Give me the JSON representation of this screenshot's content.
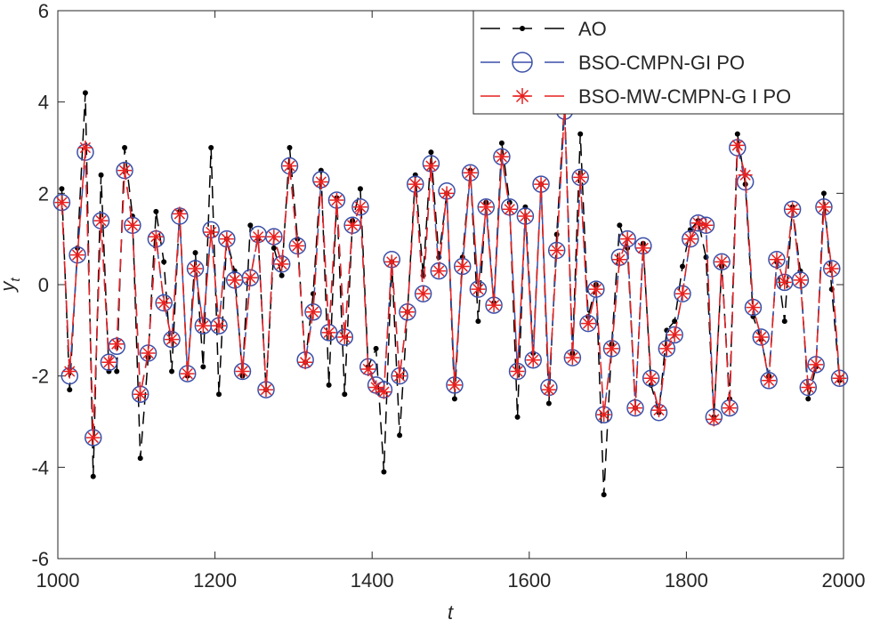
{
  "chart_data": {
    "type": "line",
    "x_label": "t",
    "y_label": "y",
    "y_label_sub": "t",
    "xlim": [
      1000,
      2000
    ],
    "xticks": [
      1000,
      1200,
      1400,
      1600,
      1800,
      2000
    ],
    "ylim": [
      -6,
      6
    ],
    "yticks": [
      -6,
      -4,
      -2,
      0,
      2,
      4,
      6
    ],
    "legend": "upper right",
    "x": [
      1005,
      1015,
      1025,
      1035,
      1045,
      1055,
      1065,
      1075,
      1085,
      1095,
      1105,
      1115,
      1125,
      1135,
      1145,
      1155,
      1165,
      1175,
      1185,
      1195,
      1205,
      1215,
      1225,
      1235,
      1245,
      1255,
      1265,
      1275,
      1285,
      1295,
      1305,
      1315,
      1325,
      1335,
      1345,
      1355,
      1365,
      1375,
      1385,
      1395,
      1405,
      1415,
      1425,
      1435,
      1445,
      1455,
      1465,
      1475,
      1485,
      1495,
      1505,
      1515,
      1525,
      1535,
      1545,
      1555,
      1565,
      1575,
      1585,
      1595,
      1605,
      1615,
      1625,
      1635,
      1645,
      1655,
      1665,
      1675,
      1685,
      1695,
      1705,
      1715,
      1725,
      1735,
      1745,
      1755,
      1765,
      1775,
      1785,
      1795,
      1805,
      1815,
      1825,
      1835,
      1845,
      1855,
      1865,
      1875,
      1885,
      1895,
      1905,
      1915,
      1925,
      1935,
      1945,
      1955,
      1965,
      1975,
      1985,
      1995
    ],
    "series": [
      {
        "name": "AO",
        "color": "#000000",
        "marker": "dot",
        "values": [
          2.1,
          -2.3,
          0.8,
          4.2,
          -4.2,
          2.4,
          -1.9,
          -1.9,
          3.0,
          1.5,
          -3.8,
          -1.6,
          1.6,
          0.5,
          -1.9,
          1.6,
          -2.0,
          0.7,
          -1.8,
          3.0,
          -2.4,
          1.0,
          0.3,
          -2.0,
          1.3,
          1.0,
          -2.3,
          0.8,
          0.2,
          3.0,
          1.0,
          -1.7,
          -0.2,
          2.5,
          -2.2,
          1.9,
          -2.4,
          1.4,
          2.1,
          -1.8,
          -1.4,
          -4.1,
          0.5,
          -3.3,
          -0.6,
          2.4,
          0.2,
          2.9,
          0.6,
          2.0,
          -2.5,
          0.6,
          2.5,
          -0.8,
          1.8,
          -0.4,
          3.1,
          1.8,
          -2.9,
          1.7,
          -1.5,
          2.2,
          -2.6,
          1.1,
          4.0,
          -1.5,
          3.3,
          -0.7,
          0.0,
          -4.6,
          -1.3,
          1.3,
          0.8,
          -2.7,
          0.9,
          -2.2,
          -2.8,
          -1.0,
          -0.8,
          0.4,
          1.2,
          1.4,
          0.6,
          -2.9,
          0.4,
          -2.5,
          3.3,
          2.2,
          -0.7,
          -1.2,
          -2.0,
          0.5,
          -0.8,
          1.7,
          0.3,
          -2.5,
          -1.8,
          2.0,
          -0.1,
          -2.1
        ]
      },
      {
        "name": "BSO-CMPN-GI PO",
        "color": "#3a4fa8",
        "marker": "circle",
        "values": [
          1.8,
          -2.0,
          0.65,
          2.9,
          -3.35,
          1.4,
          -1.7,
          -1.35,
          2.5,
          1.3,
          -2.4,
          -1.5,
          1.0,
          -0.4,
          -1.2,
          1.5,
          -1.95,
          0.35,
          -0.9,
          1.2,
          -0.9,
          1.0,
          0.1,
          -1.9,
          0.15,
          1.1,
          -2.3,
          1.05,
          0.45,
          2.6,
          0.85,
          -1.65,
          -0.6,
          2.3,
          -1.05,
          1.85,
          -1.15,
          1.3,
          1.7,
          -1.8,
          -2.2,
          -2.3,
          0.55,
          -2.0,
          -0.6,
          2.2,
          -0.2,
          2.65,
          0.3,
          2.05,
          -2.2,
          0.4,
          2.45,
          -0.1,
          1.7,
          -0.45,
          2.8,
          1.7,
          -1.9,
          1.5,
          -1.65,
          2.2,
          -2.25,
          0.75,
          3.8,
          -1.6,
          2.35,
          -0.85,
          -0.1,
          -2.85,
          -1.4,
          0.6,
          1.0,
          -2.7,
          0.85,
          -2.05,
          -2.8,
          -1.4,
          -1.1,
          -0.2,
          1.0,
          1.35,
          1.3,
          -2.9,
          0.5,
          -2.7,
          3.0,
          2.25,
          -0.5,
          -1.15,
          -2.1,
          0.55,
          0.05,
          1.65,
          0.1,
          -2.25,
          -1.75,
          1.7,
          0.35,
          -2.05
        ]
      },
      {
        "name": "BSO-MW-CMPN-G I PO",
        "color": "#e8201e",
        "marker": "asterisk",
        "values": [
          1.8,
          -1.9,
          0.65,
          3.0,
          -3.35,
          1.4,
          -1.7,
          -1.3,
          2.5,
          1.3,
          -2.4,
          -1.5,
          1.05,
          -0.4,
          -1.2,
          1.55,
          -1.95,
          0.35,
          -0.9,
          1.15,
          -0.9,
          1.0,
          0.1,
          -1.9,
          0.15,
          1.05,
          -2.3,
          1.05,
          0.45,
          2.6,
          0.85,
          -1.7,
          -0.6,
          2.25,
          -1.05,
          1.85,
          -1.15,
          1.3,
          1.7,
          -1.85,
          -2.25,
          -2.35,
          0.5,
          -2.0,
          -0.6,
          2.2,
          -0.2,
          2.6,
          0.3,
          2.0,
          -2.2,
          0.4,
          2.45,
          -0.1,
          1.7,
          -0.45,
          2.8,
          1.65,
          -1.9,
          1.5,
          -1.65,
          2.2,
          -2.3,
          0.75,
          3.9,
          -1.6,
          2.35,
          -0.85,
          -0.1,
          -2.85,
          -1.4,
          0.55,
          1.0,
          -2.7,
          0.8,
          -2.05,
          -2.75,
          -1.4,
          -1.1,
          -0.2,
          1.0,
          1.35,
          1.3,
          -2.95,
          0.5,
          -2.7,
          3.05,
          2.4,
          -0.5,
          -1.15,
          -2.1,
          0.55,
          0.05,
          1.65,
          0.1,
          -2.25,
          -1.75,
          1.7,
          0.35,
          -2.05
        ]
      }
    ]
  }
}
